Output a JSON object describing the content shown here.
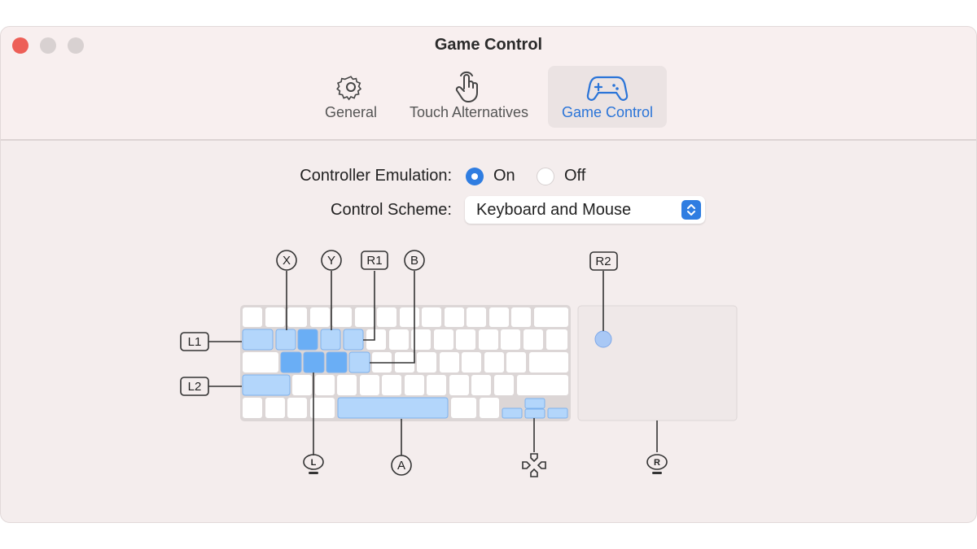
{
  "window": {
    "title": "Game Control",
    "traffic_lights": {
      "close": "#ed5f57",
      "minimize": "#d6d0d0",
      "zoom": "#d6d0d0"
    }
  },
  "tabs": [
    {
      "label": "General",
      "icon": "gear-icon"
    },
    {
      "label": "Touch Alternatives",
      "icon": "hand-tap-icon"
    },
    {
      "label": "Game Control",
      "icon": "gamecontroller-icon",
      "active": true
    }
  ],
  "form": {
    "emulation_label": "Controller Emulation:",
    "on_label": "On",
    "off_label": "Off",
    "emulation_value": "On",
    "scheme_label": "Control Scheme:",
    "scheme_value": "Keyboard and Mouse"
  },
  "mapping": {
    "x": "X",
    "y": "Y",
    "r1": "R1",
    "b": "B",
    "l1": "L1",
    "l2": "L2",
    "a": "A",
    "r2": "R2",
    "left_stick": "L",
    "right_stick": "R",
    "dpad": "dpad-icon"
  },
  "colors": {
    "accent": "#2f7de1",
    "key_light": "#b3d6fb",
    "key_dark": "#6aaef5",
    "key_white": "#ffffff"
  }
}
